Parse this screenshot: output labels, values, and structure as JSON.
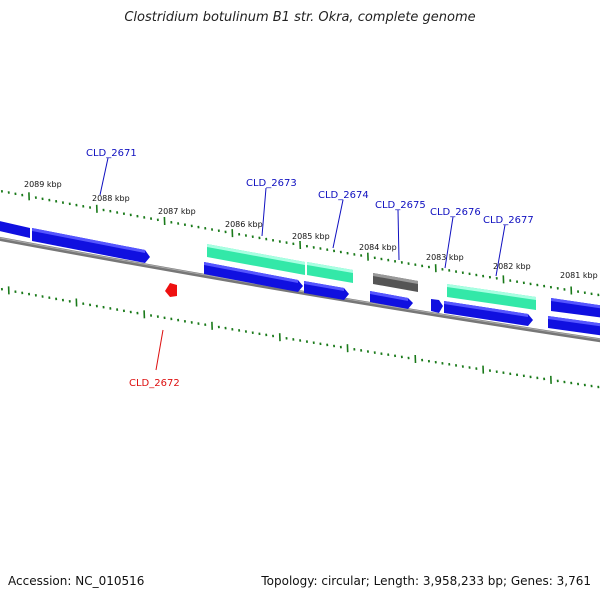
{
  "title": "Clostridium botulinum B1 str. Okra, complete genome",
  "accession": "Accession: NC_010516",
  "summary": "Topology: circular; Length: 3,958,233 bp; Genes: 3,761",
  "colors": {
    "backbone": "#777777",
    "cds": "#1010e0",
    "cds_top": "#4a4aff",
    "rna": "#33e8a8",
    "rna_top": "#a0ffe0",
    "gray_feature": "#666666",
    "tick": "#1a7a1a",
    "label_forward": "#1010c0",
    "label_reverse": "#dd1010",
    "scale_text": "#111111"
  },
  "scale_labels": [
    "2089 kbp",
    "2088 kbp",
    "2087 kbp",
    "2086 kbp",
    "2085 kbp",
    "2084 kbp",
    "2083 kbp",
    "2082 kbp",
    "2081 kbp"
  ],
  "gene_labels": [
    {
      "id": "CLD_2671",
      "strand": "forward"
    },
    {
      "id": "CLD_2672",
      "strand": "reverse"
    },
    {
      "id": "CLD_2673",
      "strand": "forward"
    },
    {
      "id": "CLD_2674",
      "strand": "forward"
    },
    {
      "id": "CLD_2675",
      "strand": "forward"
    },
    {
      "id": "CLD_2676",
      "strand": "forward"
    },
    {
      "id": "CLD_2677",
      "strand": "forward"
    }
  ]
}
